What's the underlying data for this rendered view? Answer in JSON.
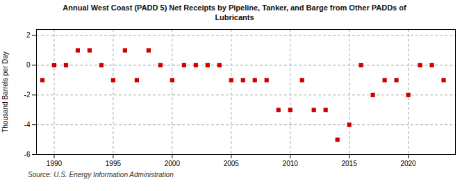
{
  "chart_data": {
    "type": "scatter",
    "title": "Annual West Coast (PADD 5) Net Receipts by Pipeline, Tanker, and Barge from Other PADDs of\nLubricants",
    "ylabel": "Thousand Barrels per Day",
    "annotations": [
      "Source: U.S. Energy Information Administration"
    ],
    "x": [
      1989,
      1990,
      1991,
      1992,
      1993,
      1994,
      1995,
      1996,
      1997,
      1998,
      1999,
      2000,
      2001,
      2002,
      2003,
      2004,
      2005,
      2006,
      2007,
      2008,
      2009,
      2010,
      2011,
      2012,
      2013,
      2014,
      2015,
      2016,
      2017,
      2018,
      2019,
      2020,
      2021,
      2022,
      2023
    ],
    "values": [
      -1,
      0,
      0,
      1,
      1,
      0,
      -1,
      1,
      -1,
      1,
      0,
      -1,
      0,
      0,
      0,
      0,
      -1,
      -1,
      -1,
      -1,
      -3,
      -3,
      -1,
      -3,
      -3,
      -5,
      -4,
      0,
      -2,
      -1,
      -1,
      -2,
      0,
      0,
      -1
    ],
    "color": "#cc0000",
    "marker": "square",
    "xlim": [
      1988.5,
      2024
    ],
    "ylim": [
      -6,
      2.4
    ],
    "xticks": [
      1990,
      1995,
      2000,
      2005,
      2010,
      2015,
      2020
    ],
    "yticks": [
      -6,
      -4,
      -2,
      0,
      2
    ],
    "grid": true
  }
}
